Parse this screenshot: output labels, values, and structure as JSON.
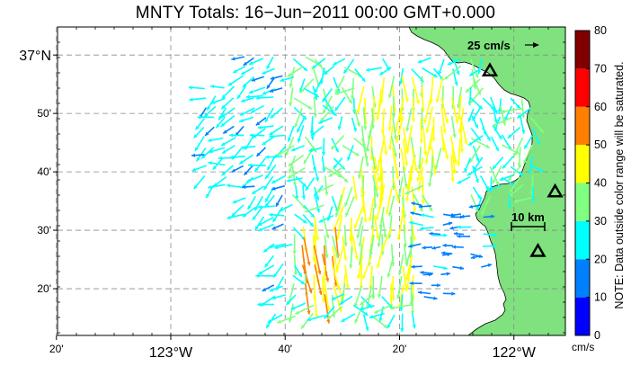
{
  "title": "MNTY Totals: 16−Jun−2011 00:00 GMT+0.000",
  "map": {
    "lon_range": [
      -123.33,
      -121.85
    ],
    "lat_range": [
      36.2,
      37.08
    ],
    "lat_ticks": [
      {
        "value": 37.0,
        "label": "37°N",
        "major": true
      },
      {
        "value": 36.8333,
        "label": "50'",
        "major": false
      },
      {
        "value": 36.6667,
        "label": "40'",
        "major": false
      },
      {
        "value": 36.5,
        "label": "30'",
        "major": false
      },
      {
        "value": 36.3333,
        "label": "20'",
        "major": false
      }
    ],
    "lon_ticks": [
      {
        "value": -123.3333,
        "label": "20'",
        "major": false
      },
      {
        "value": -123.0,
        "label": "123°W",
        "major": true
      },
      {
        "value": -122.6667,
        "label": "40'",
        "major": false
      },
      {
        "value": -122.3333,
        "label": "20'",
        "major": false
      },
      {
        "value": -122.0,
        "label": "122°W",
        "major": true
      }
    ],
    "scale_vector_label": "25 cm/s",
    "scale_bar_label": "10 km",
    "stations": [
      {
        "lon": -122.07,
        "lat": 36.955
      },
      {
        "lon": -121.88,
        "lat": 36.61
      },
      {
        "lon": -121.93,
        "lat": 36.44
      }
    ],
    "colors": {
      "land": "#7fe27f",
      "coast": "#000000",
      "grid": "#999999"
    }
  },
  "colorbar": {
    "ticks": [
      "0",
      "10",
      "20",
      "30",
      "40",
      "50",
      "60",
      "70",
      "80"
    ],
    "units": "cm/s",
    "note": "NOTE: Data outside color range will be saturated.",
    "bands": [
      "#0000ff",
      "#0080ff",
      "#00ffff",
      "#80ff80",
      "#ffff00",
      "#ff8000",
      "#ff0000",
      "#800000"
    ]
  }
}
